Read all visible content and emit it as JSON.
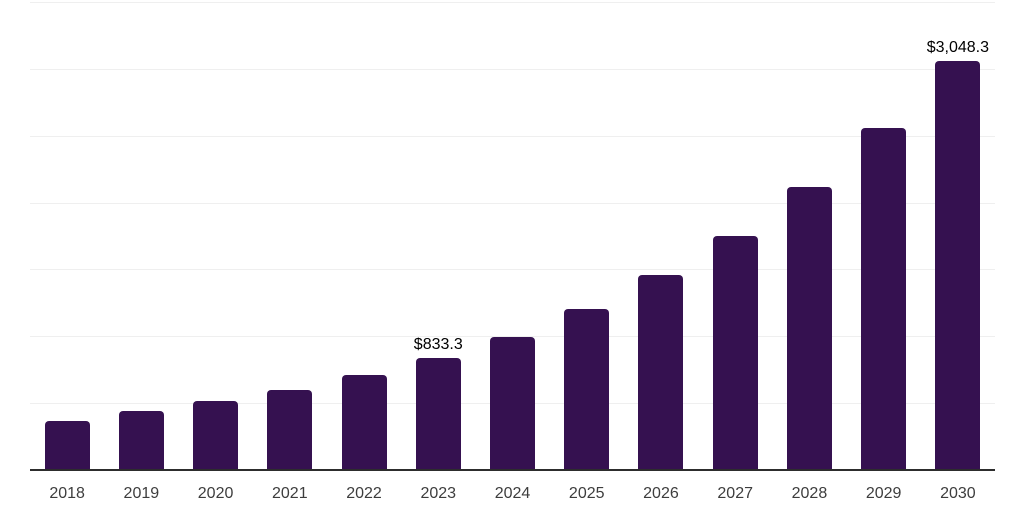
{
  "chart_data": {
    "type": "bar",
    "title": "",
    "xlabel": "",
    "ylabel": "",
    "categories": [
      "2018",
      "2019",
      "2020",
      "2021",
      "2022",
      "2023",
      "2024",
      "2025",
      "2026",
      "2027",
      "2028",
      "2029",
      "2030"
    ],
    "values": [
      360,
      435,
      509,
      589,
      700,
      833.3,
      990,
      1198,
      1448,
      1746,
      2112,
      2547,
      3048.3
    ],
    "labeled_points": [
      {
        "category": "2023",
        "label": "$833.3"
      },
      {
        "category": "2030",
        "label": "$3,048.3"
      }
    ],
    "ylim": [
      0,
      3500
    ],
    "gridline_interval": 500,
    "grid": "horizontal",
    "y_tick_labels_shown": false,
    "legend_position": "none",
    "colors": {
      "bar": "#351150",
      "axis_line": "#2d2d2d",
      "gridline": "#efefef",
      "tick_label": "#3d3d3d",
      "data_label": "#000000",
      "background": "#ffffff"
    }
  }
}
